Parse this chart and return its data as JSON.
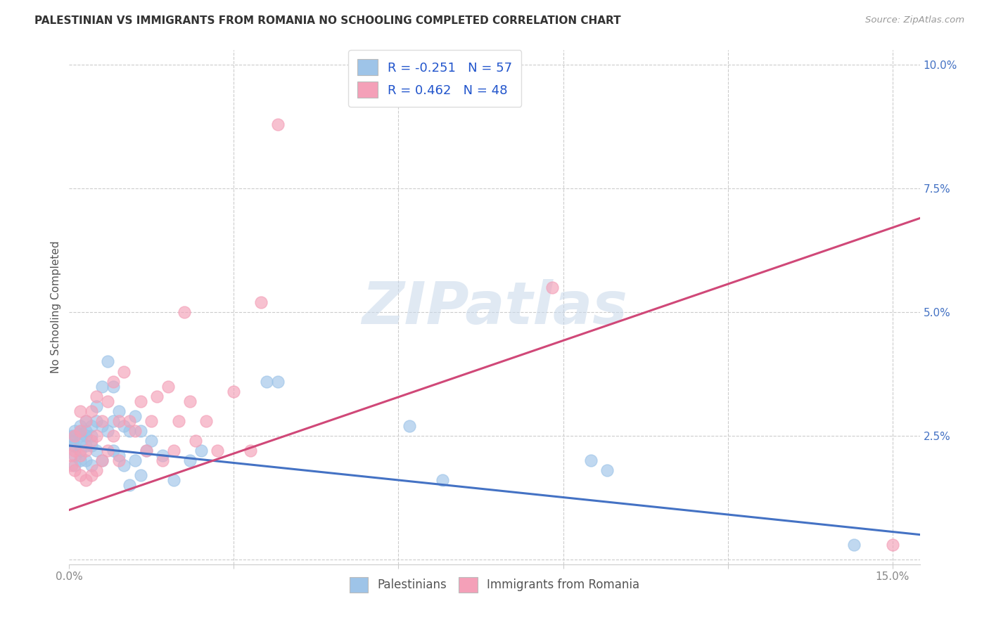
{
  "title": "PALESTINIAN VS IMMIGRANTS FROM ROMANIA NO SCHOOLING COMPLETED CORRELATION CHART",
  "source": "Source: ZipAtlas.com",
  "ylabel": "No Schooling Completed",
  "xlim": [
    0.0,
    0.155
  ],
  "ylim": [
    -0.001,
    0.103
  ],
  "xticks": [
    0.0,
    0.03,
    0.06,
    0.09,
    0.12,
    0.15
  ],
  "xtick_labels_show": [
    "0.0%",
    "",
    "",
    "",
    "",
    "15.0%"
  ],
  "yticks": [
    0.0,
    0.025,
    0.05,
    0.075,
    0.1
  ],
  "ytick_labels": [
    "",
    "2.5%",
    "5.0%",
    "7.5%",
    "10.0%"
  ],
  "series1_label": "Palestinians",
  "series1_R": -0.251,
  "series1_N": 57,
  "series1_color": "#9ec4e8",
  "series1_line_color": "#4472c4",
  "series2_label": "Immigrants from Romania",
  "series2_R": 0.462,
  "series2_N": 48,
  "series2_color": "#f4a0b8",
  "series2_line_color": "#d04878",
  "watermark_text": "ZIPatlas",
  "blue_trend_start_y": 0.023,
  "blue_trend_end_y": 0.005,
  "pink_trend_start_y": 0.01,
  "pink_trend_end_y": 0.069,
  "blue_x": [
    0.0003,
    0.0005,
    0.0007,
    0.001,
    0.001,
    0.001,
    0.001,
    0.001,
    0.002,
    0.002,
    0.002,
    0.002,
    0.002,
    0.002,
    0.003,
    0.003,
    0.003,
    0.003,
    0.003,
    0.004,
    0.004,
    0.004,
    0.004,
    0.005,
    0.005,
    0.005,
    0.006,
    0.006,
    0.006,
    0.007,
    0.007,
    0.008,
    0.008,
    0.008,
    0.009,
    0.009,
    0.01,
    0.01,
    0.011,
    0.011,
    0.012,
    0.012,
    0.013,
    0.013,
    0.014,
    0.015,
    0.017,
    0.019,
    0.022,
    0.024,
    0.036,
    0.038,
    0.062,
    0.068,
    0.095,
    0.098,
    0.143
  ],
  "blue_y": [
    0.024,
    0.025,
    0.023,
    0.026,
    0.025,
    0.023,
    0.021,
    0.019,
    0.027,
    0.026,
    0.025,
    0.024,
    0.022,
    0.02,
    0.028,
    0.026,
    0.025,
    0.023,
    0.02,
    0.027,
    0.025,
    0.023,
    0.019,
    0.031,
    0.028,
    0.022,
    0.035,
    0.027,
    0.02,
    0.04,
    0.026,
    0.035,
    0.028,
    0.022,
    0.03,
    0.021,
    0.027,
    0.019,
    0.026,
    0.015,
    0.029,
    0.02,
    0.026,
    0.017,
    0.022,
    0.024,
    0.021,
    0.016,
    0.02,
    0.022,
    0.036,
    0.036,
    0.027,
    0.016,
    0.02,
    0.018,
    0.003
  ],
  "pink_x": [
    0.0003,
    0.0005,
    0.001,
    0.001,
    0.001,
    0.002,
    0.002,
    0.002,
    0.002,
    0.003,
    0.003,
    0.003,
    0.004,
    0.004,
    0.004,
    0.005,
    0.005,
    0.005,
    0.006,
    0.006,
    0.007,
    0.007,
    0.008,
    0.008,
    0.009,
    0.009,
    0.01,
    0.011,
    0.012,
    0.013,
    0.014,
    0.015,
    0.016,
    0.017,
    0.018,
    0.019,
    0.02,
    0.021,
    0.022,
    0.023,
    0.025,
    0.027,
    0.03,
    0.033,
    0.035,
    0.038,
    0.088,
    0.15
  ],
  "pink_y": [
    0.021,
    0.019,
    0.025,
    0.022,
    0.018,
    0.03,
    0.026,
    0.021,
    0.017,
    0.028,
    0.022,
    0.016,
    0.03,
    0.024,
    0.017,
    0.033,
    0.025,
    0.018,
    0.028,
    0.02,
    0.032,
    0.022,
    0.036,
    0.025,
    0.028,
    0.02,
    0.038,
    0.028,
    0.026,
    0.032,
    0.022,
    0.028,
    0.033,
    0.02,
    0.035,
    0.022,
    0.028,
    0.05,
    0.032,
    0.024,
    0.028,
    0.022,
    0.034,
    0.022,
    0.052,
    0.088,
    0.055,
    0.003
  ]
}
